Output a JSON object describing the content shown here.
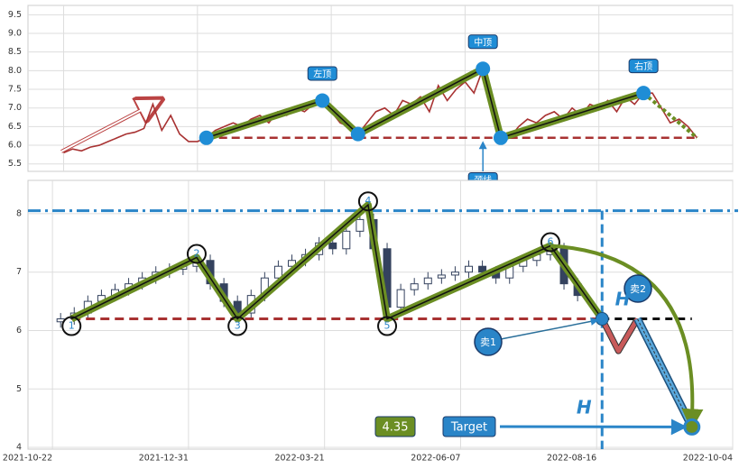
{
  "chart_data": [
    {
      "type": "line",
      "xlim": [
        -4,
        75
      ],
      "xticks": [
        0,
        15,
        30,
        45,
        60,
        75
      ],
      "ylim": [
        5.3,
        9.75
      ],
      "yticks": [
        5.5,
        {
          "value": 6,
          "label": "6.0"
        },
        6.5,
        {
          "value": 7,
          "label": "7.0"
        },
        7.5,
        {
          "value": 8,
          "label": "8.0"
        },
        8.5,
        {
          "value": 9,
          "label": "9.0"
        },
        9.5
      ],
      "grid": true,
      "series": [
        {
          "color": "#a83232",
          "x": [
            0,
            1,
            2,
            3,
            4,
            5,
            6,
            7,
            8,
            9,
            10,
            11,
            12,
            13,
            14,
            15,
            16,
            17,
            18,
            19,
            20,
            21,
            22,
            23,
            24,
            25,
            26,
            27,
            28,
            29,
            30,
            31,
            32,
            33,
            34,
            35,
            36,
            37,
            38,
            39,
            40,
            41,
            42,
            43,
            44,
            45,
            46,
            47,
            48,
            49,
            50,
            51,
            52,
            53,
            54,
            55,
            56,
            57,
            58,
            59,
            60,
            61,
            62,
            63,
            64,
            65,
            66,
            67,
            68,
            69,
            70,
            71
          ],
          "values": [
            5.8,
            5.9,
            5.85,
            5.95,
            6.0,
            6.1,
            6.2,
            6.3,
            6.35,
            6.45,
            7.1,
            6.4,
            6.8,
            6.3,
            6.1,
            6.1,
            6.2,
            6.4,
            6.5,
            6.6,
            6.5,
            6.7,
            6.8,
            6.6,
            6.9,
            6.8,
            7.0,
            6.9,
            7.1,
            7.2,
            6.9,
            6.6,
            6.5,
            6.3,
            6.6,
            6.9,
            7.0,
            6.8,
            7.2,
            7.1,
            7.3,
            6.9,
            7.6,
            7.2,
            7.5,
            7.7,
            7.4,
            8.05,
            7.0,
            6.3,
            6.2,
            6.5,
            6.7,
            6.6,
            6.8,
            6.9,
            6.7,
            7.0,
            6.8,
            7.1,
            7.0,
            7.2,
            6.9,
            7.3,
            7.1,
            7.4,
            7.4,
            7.0,
            6.6,
            6.7,
            6.5,
            6.2
          ]
        }
      ],
      "pattern": {
        "x": [
          16,
          29,
          33,
          47,
          49,
          65
        ],
        "values": [
          6.2,
          7.2,
          6.3,
          8.05,
          6.2,
          7.4
        ],
        "labels": [
          null,
          "左顶",
          null,
          "中顶",
          null,
          "右顶"
        ],
        "color": "#1f8dd6",
        "line_color": "#6b8e23"
      },
      "neckline": 6.2,
      "neckline_color": "#a83232",
      "neckline_label": "颈线"
    },
    {
      "type": "candlestick",
      "xlim": [
        -9,
        250
      ],
      "xticks": [
        {
          "value": 0,
          "label": "2021-10-22"
        },
        {
          "value": 50,
          "label": "2021-12-31"
        },
        {
          "value": 100,
          "label": "2022-03-21"
        },
        {
          "value": 150,
          "label": "2022-06-07"
        },
        {
          "value": 200,
          "label": "2022-08-16"
        },
        {
          "value": 250,
          "label": "2022-10-04"
        }
      ],
      "ylim": [
        3.97,
        8.57
      ],
      "yticks": [
        4,
        5,
        6,
        7,
        8
      ],
      "grid": true,
      "color": "#34425e",
      "x": [
        3,
        8,
        13,
        18,
        23,
        28,
        33,
        38,
        43,
        48,
        53,
        58,
        63,
        68,
        73,
        78,
        83,
        88,
        93,
        98,
        103,
        108,
        113,
        118,
        123,
        128,
        133,
        138,
        143,
        148,
        153,
        158,
        163,
        168,
        173,
        178,
        183,
        188,
        193
      ],
      "open": [
        6.15,
        6.2,
        6.3,
        6.5,
        6.6,
        6.7,
        6.8,
        6.9,
        7.0,
        7.05,
        7.1,
        7.2,
        6.8,
        6.5,
        6.3,
        6.6,
        6.9,
        7.1,
        7.2,
        7.3,
        7.5,
        7.4,
        7.7,
        7.9,
        7.4,
        6.4,
        6.7,
        6.8,
        6.9,
        6.95,
        7.0,
        7.1,
        7.0,
        6.9,
        7.1,
        7.2,
        7.3,
        7.4,
        6.8
      ],
      "high": [
        6.3,
        6.4,
        6.6,
        6.7,
        6.8,
        6.9,
        7.0,
        7.1,
        7.15,
        7.2,
        7.3,
        7.3,
        6.9,
        6.6,
        6.7,
        7.0,
        7.2,
        7.3,
        7.4,
        7.6,
        7.6,
        7.8,
        8.0,
        8.0,
        7.5,
        6.8,
        6.9,
        7.0,
        7.05,
        7.1,
        7.2,
        7.2,
        7.1,
        7.2,
        7.3,
        7.4,
        7.5,
        7.5,
        6.9
      ],
      "low": [
        6.05,
        6.1,
        6.2,
        6.4,
        6.5,
        6.6,
        6.7,
        6.8,
        6.9,
        6.95,
        7.0,
        6.7,
        6.4,
        6.2,
        6.2,
        6.5,
        6.8,
        7.0,
        7.1,
        7.2,
        7.3,
        7.3,
        7.6,
        7.3,
        6.3,
        6.3,
        6.6,
        6.7,
        6.8,
        6.85,
        6.9,
        6.9,
        6.8,
        6.8,
        7.0,
        7.1,
        7.2,
        6.7,
        6.5
      ],
      "close": [
        6.2,
        6.3,
        6.5,
        6.6,
        6.7,
        6.8,
        6.9,
        7.0,
        7.05,
        7.1,
        7.2,
        6.8,
        6.5,
        6.3,
        6.6,
        6.9,
        7.1,
        7.2,
        7.3,
        7.5,
        7.4,
        7.7,
        7.9,
        7.4,
        6.4,
        6.7,
        6.8,
        6.9,
        6.95,
        7.0,
        7.1,
        7.0,
        6.9,
        7.1,
        7.2,
        7.3,
        7.4,
        6.8,
        6.6
      ],
      "pattern": {
        "x": [
          7,
          53,
          68,
          116,
          123,
          183,
          202
        ],
        "values": [
          6.2,
          7.25,
          6.2,
          8.15,
          6.2,
          7.45,
          6.2
        ],
        "labels": [
          "1",
          "2",
          "3",
          "4",
          "5",
          "6",
          null
        ]
      },
      "neckline": 6.2,
      "resistance": 8.05,
      "projection": {
        "x": [
          202,
          208,
          215
        ],
        "values": [
          6.2,
          5.65,
          6.2
        ]
      },
      "target": 4.35,
      "target_x": 235,
      "sell_labels": [
        "卖1",
        "卖2"
      ],
      "height_label": "H",
      "target_label": "Target"
    }
  ]
}
